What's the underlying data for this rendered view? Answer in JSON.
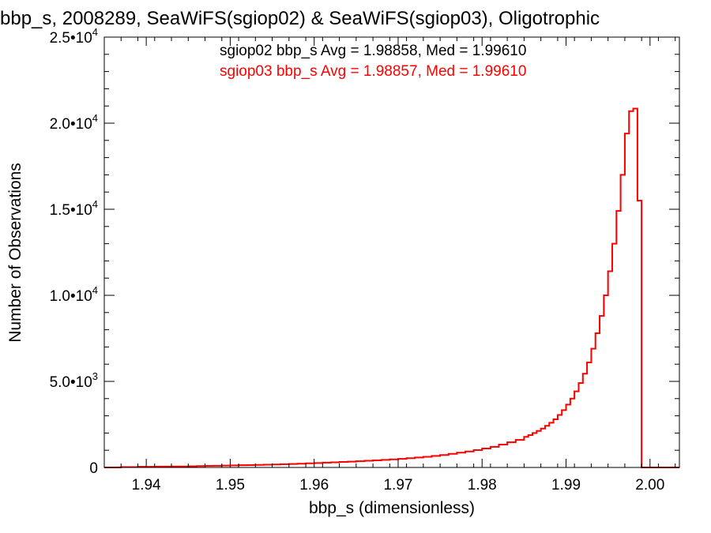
{
  "chart_data": {
    "type": "histogram",
    "title": "bbp_s, 2008289, SeaWiFS(sgiop02) & SeaWiFS(sgiop03), Oligotrophic",
    "xlabel": "bbp_s (dimensionless)",
    "ylabel": "Number of Observations",
    "xlim": [
      1.935,
      2.0035
    ],
    "ylim": [
      0,
      25000
    ],
    "x_ticks": [
      {
        "value": 1.94,
        "label": "1.94"
      },
      {
        "value": 1.95,
        "label": "1.95"
      },
      {
        "value": 1.96,
        "label": "1.96"
      },
      {
        "value": 1.97,
        "label": "1.97"
      },
      {
        "value": 1.98,
        "label": "1.98"
      },
      {
        "value": 1.99,
        "label": "1.99"
      },
      {
        "value": 2.0,
        "label": "2.00"
      }
    ],
    "y_ticks": [
      {
        "value": 0,
        "mant": "0",
        "exp": ""
      },
      {
        "value": 5000,
        "mant": "5.0•10",
        "exp": "3"
      },
      {
        "value": 10000,
        "mant": "1.0•10",
        "exp": "4"
      },
      {
        "value": 15000,
        "mant": "1.5•10",
        "exp": "4"
      },
      {
        "value": 20000,
        "mant": "2.0•10",
        "exp": "4"
      },
      {
        "value": 25000,
        "mant": "2.5•10",
        "exp": "4"
      }
    ],
    "grid": false,
    "legend": [
      {
        "label": "sgiop02 bbp_s Avg = 1.98858, Med = 1.99610",
        "color": "#000000"
      },
      {
        "label": "sgiop03 bbp_s Avg = 1.98857, Med = 1.99610",
        "color": "#ff0000"
      }
    ],
    "series": [
      {
        "color": "#000000",
        "x": [
          1.935,
          1.936,
          1.937,
          1.938,
          1.939,
          1.94,
          1.941,
          1.942,
          1.943,
          1.944,
          1.945,
          1.946,
          1.947,
          1.948,
          1.949,
          1.95,
          1.951,
          1.952,
          1.953,
          1.954,
          1.955,
          1.956,
          1.957,
          1.958,
          1.959,
          1.96,
          1.961,
          1.962,
          1.963,
          1.964,
          1.965,
          1.966,
          1.967,
          1.968,
          1.969,
          1.97,
          1.971,
          1.972,
          1.973,
          1.974,
          1.975,
          1.976,
          1.977,
          1.978,
          1.979,
          1.98,
          1.981,
          1.982,
          1.983,
          1.984,
          1.985,
          1.9855,
          1.986,
          1.9865,
          1.987,
          1.9875,
          1.988,
          1.9885,
          1.989,
          1.9895,
          1.99,
          1.9905,
          1.991,
          1.9915,
          1.992,
          1.9925,
          1.993,
          1.9935,
          1.994,
          1.9945,
          1.995,
          1.9955,
          1.996,
          1.9965,
          1.997,
          1.9975,
          1.998,
          1.9985,
          1.999,
          1.9995,
          2.0,
          2.0005
        ],
        "y": [
          0,
          0,
          20,
          20,
          40,
          40,
          50,
          50,
          60,
          60,
          70,
          80,
          90,
          100,
          110,
          120,
          130,
          140,
          150,
          160,
          170,
          190,
          200,
          220,
          240,
          260,
          280,
          300,
          320,
          340,
          360,
          390,
          410,
          440,
          470,
          500,
          540,
          580,
          620,
          670,
          720,
          790,
          860,
          930,
          1010,
          1100,
          1200,
          1330,
          1460,
          1600,
          1780,
          1880,
          2000,
          2120,
          2260,
          2420,
          2600,
          2800,
          3050,
          3330,
          3650,
          4000,
          4420,
          4900,
          5450,
          6100,
          6900,
          7800,
          8800,
          10000,
          11400,
          13000,
          14900,
          17000,
          19400,
          20700,
          20850,
          15500,
          0,
          0,
          0,
          0
        ]
      },
      {
        "color": "#ff0000",
        "x": [
          1.935,
          1.936,
          1.937,
          1.938,
          1.939,
          1.94,
          1.941,
          1.942,
          1.943,
          1.944,
          1.945,
          1.946,
          1.947,
          1.948,
          1.949,
          1.95,
          1.951,
          1.952,
          1.953,
          1.954,
          1.955,
          1.956,
          1.957,
          1.958,
          1.959,
          1.96,
          1.961,
          1.962,
          1.963,
          1.964,
          1.965,
          1.966,
          1.967,
          1.968,
          1.969,
          1.97,
          1.971,
          1.972,
          1.973,
          1.974,
          1.975,
          1.976,
          1.977,
          1.978,
          1.979,
          1.98,
          1.981,
          1.982,
          1.983,
          1.984,
          1.985,
          1.9855,
          1.986,
          1.9865,
          1.987,
          1.9875,
          1.988,
          1.9885,
          1.989,
          1.9895,
          1.99,
          1.9905,
          1.991,
          1.9915,
          1.992,
          1.9925,
          1.993,
          1.9935,
          1.994,
          1.9945,
          1.995,
          1.9955,
          1.996,
          1.9965,
          1.997,
          1.9975,
          1.998,
          1.9985,
          1.999,
          1.9995,
          2.0,
          2.0005
        ],
        "y": [
          0,
          0,
          20,
          20,
          40,
          40,
          50,
          50,
          60,
          60,
          70,
          80,
          90,
          100,
          110,
          120,
          130,
          140,
          150,
          160,
          170,
          190,
          200,
          220,
          240,
          260,
          280,
          300,
          320,
          340,
          360,
          390,
          410,
          440,
          470,
          500,
          540,
          580,
          620,
          670,
          720,
          790,
          860,
          930,
          1010,
          1100,
          1200,
          1330,
          1460,
          1600,
          1780,
          1880,
          2000,
          2120,
          2260,
          2420,
          2600,
          2800,
          3050,
          3330,
          3650,
          4000,
          4420,
          4900,
          5450,
          6100,
          6900,
          7800,
          8800,
          10000,
          11400,
          13000,
          14900,
          17000,
          19400,
          20700,
          20850,
          15500,
          0,
          0,
          0,
          0
        ]
      }
    ]
  }
}
